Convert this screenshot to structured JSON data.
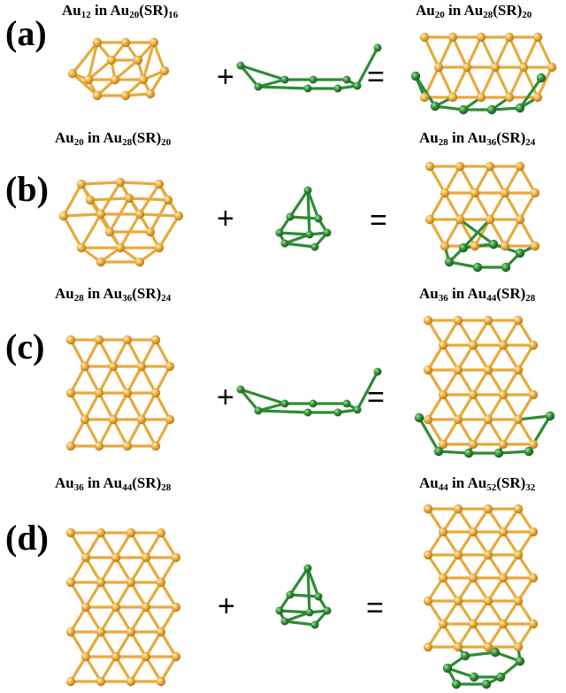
{
  "panels": [
    {
      "letter": "(a)",
      "left": [
        {
          "t": "Au"
        },
        {
          "s": "12"
        },
        {
          "t": " in Au"
        },
        {
          "s": "20"
        },
        {
          "t": "(SR)"
        },
        {
          "s": "16"
        }
      ],
      "right": [
        {
          "t": "Au"
        },
        {
          "s": "20"
        },
        {
          "t": " in Au"
        },
        {
          "s": "28"
        },
        {
          "t": "(SR)"
        },
        {
          "s": "20"
        }
      ],
      "plus": "+",
      "equals": "="
    },
    {
      "letter": "(b)",
      "left": [
        {
          "t": "Au"
        },
        {
          "s": "20"
        },
        {
          "t": " in Au"
        },
        {
          "s": "28"
        },
        {
          "t": "(SR)"
        },
        {
          "s": "20"
        }
      ],
      "right": [
        {
          "t": "Au"
        },
        {
          "s": "28"
        },
        {
          "t": " in Au"
        },
        {
          "s": "36"
        },
        {
          "t": "(SR)"
        },
        {
          "s": "24"
        }
      ],
      "plus": "+",
      "equals": "="
    },
    {
      "letter": "(c)",
      "left": [
        {
          "t": "Au"
        },
        {
          "s": "28"
        },
        {
          "t": " in Au"
        },
        {
          "s": "36"
        },
        {
          "t": "(SR)"
        },
        {
          "s": "24"
        }
      ],
      "right": [
        {
          "t": "Au"
        },
        {
          "s": "36"
        },
        {
          "t": " in Au"
        },
        {
          "s": "44"
        },
        {
          "t": "(SR)"
        },
        {
          "s": "28"
        }
      ],
      "plus": "+",
      "equals": "="
    },
    {
      "letter": "(d)",
      "left": [
        {
          "t": "Au"
        },
        {
          "s": "36"
        },
        {
          "t": " in Au"
        },
        {
          "s": "44"
        },
        {
          "t": "(SR)"
        },
        {
          "s": "28"
        }
      ],
      "right": [
        {
          "t": "Au"
        },
        {
          "s": "44"
        },
        {
          "t": " in Au"
        },
        {
          "s": "52"
        },
        {
          "t": "(SR)"
        },
        {
          "s": "32"
        }
      ],
      "plus": "+",
      "equals": "="
    }
  ],
  "colors": {
    "gold": "#e9a93a",
    "gold_dark": "#b87d1c",
    "green": "#2e8b35",
    "green_dark": "#1d5e22",
    "text": "#000000"
  }
}
